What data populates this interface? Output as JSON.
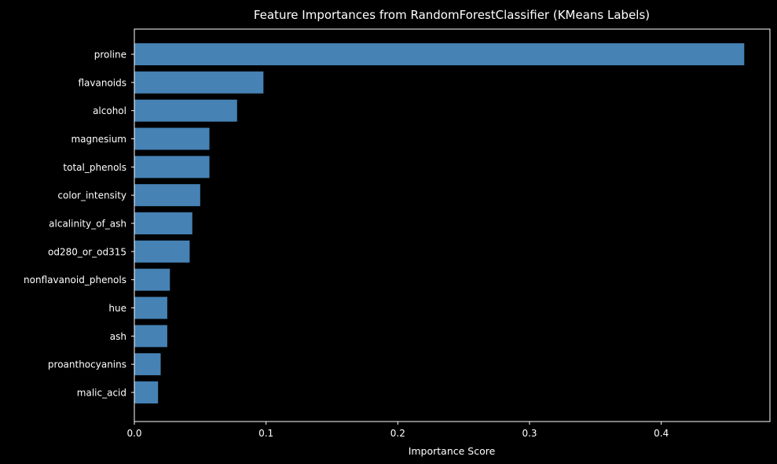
{
  "chart_data": {
    "type": "bar",
    "orientation": "horizontal",
    "title": "Feature Importances from RandomForestClassifier (KMeans Labels)",
    "xlabel": "Importance Score",
    "ylabel": "",
    "xlim": [
      0,
      0.4825
    ],
    "xticks": [
      0.0,
      0.1,
      0.2,
      0.3,
      0.4
    ],
    "xtick_labels": [
      "0.0",
      "0.1",
      "0.2",
      "0.3",
      "0.4"
    ],
    "grid": false,
    "legend": "none",
    "bar_color": "#4682b4",
    "background_color": "#000000",
    "text_color": "#ffffff",
    "categories": [
      "proline",
      "flavanoids",
      "alcohol",
      "magnesium",
      "total_phenols",
      "color_intensity",
      "alcalinity_of_ash",
      "od280_or_od315",
      "nonflavanoid_phenols",
      "hue",
      "ash",
      "proanthocyanins",
      "malic_acid"
    ],
    "values": [
      0.463,
      0.098,
      0.078,
      0.057,
      0.057,
      0.05,
      0.044,
      0.042,
      0.027,
      0.025,
      0.025,
      0.02,
      0.018
    ]
  }
}
